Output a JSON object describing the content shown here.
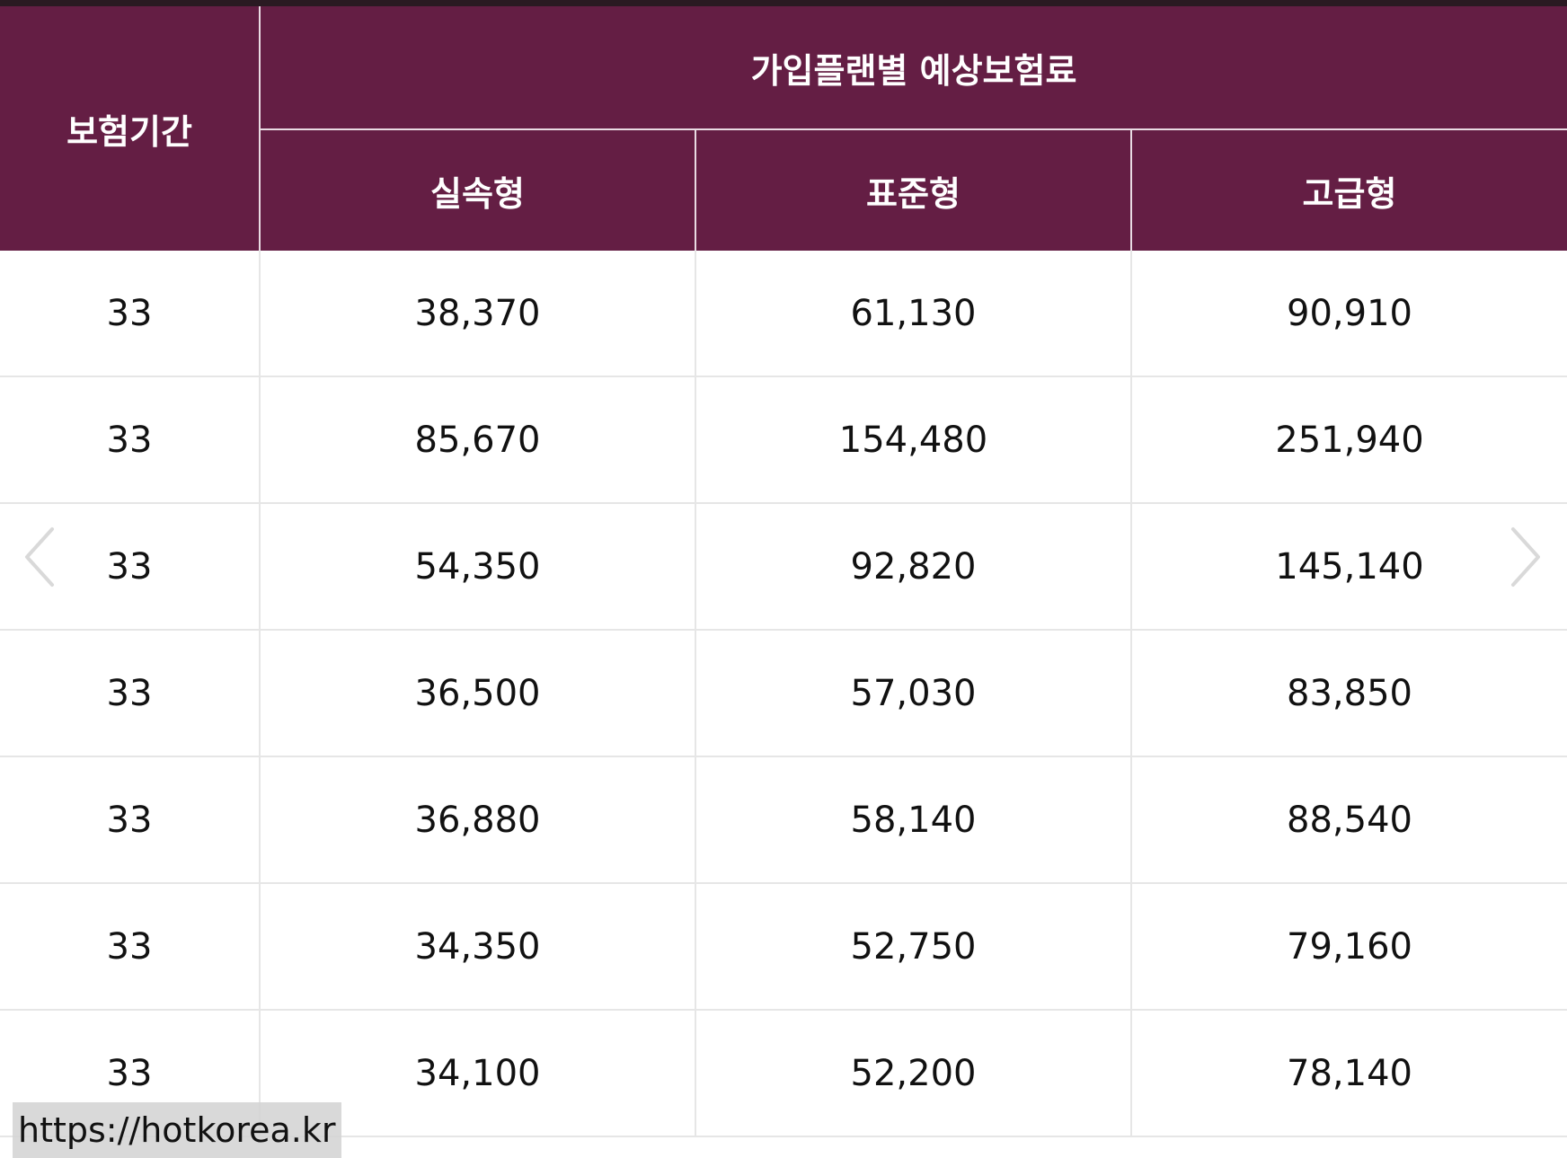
{
  "table": {
    "period_header": "보험기간",
    "group_header": "가입플랜별 예상보험료",
    "plan_headers": [
      "실속형",
      "표준형",
      "고급형"
    ],
    "rows": [
      [
        "33",
        "38,370",
        "61,130",
        "90,910"
      ],
      [
        "33",
        "85,670",
        "154,480",
        "251,940"
      ],
      [
        "33",
        "54,350",
        "92,820",
        "145,140"
      ],
      [
        "33",
        "36,500",
        "57,030",
        "83,850"
      ],
      [
        "33",
        "36,880",
        "58,140",
        "88,540"
      ],
      [
        "33",
        "34,350",
        "52,750",
        "79,160"
      ],
      [
        "33",
        "34,100",
        "52,200",
        "78,140"
      ]
    ]
  },
  "navigation": {
    "prev_icon": "chevron-left-icon",
    "next_icon": "chevron-right-icon"
  },
  "watermark": {
    "text": "https://hotkorea.kr"
  },
  "colors": {
    "header_bg": "#641e44",
    "header_text": "#ffffff",
    "grid_line": "#e6e6e6"
  }
}
